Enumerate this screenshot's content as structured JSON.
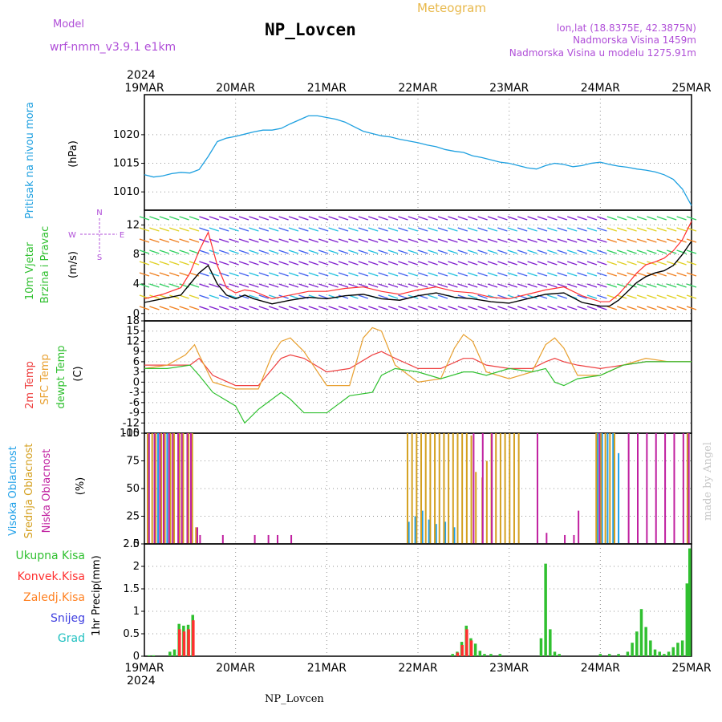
{
  "header": {
    "model_label": "Model",
    "model_name": "wrf-nmm_v3.9.1  e1km",
    "station_title": "NP_Lovcen",
    "meteogram_label": "Meteogram",
    "lonlat": "lon,lat (18.8375E, 42.3875N)",
    "altitude": "Nadmorska Visina 1459m",
    "model_altitude": "Nadmorska Visina u modelu 1275.91m",
    "bottom_station": "NP_Lovcen",
    "credit": "made by Angel",
    "colors": {
      "purple": "#b04fd8",
      "gold": "#e8b84a",
      "title": "#000000"
    }
  },
  "time_axis": {
    "year": "2024",
    "ticks": [
      "19MAR",
      "20MAR",
      "21MAR",
      "22MAR",
      "23MAR",
      "24MAR",
      "25MAR"
    ],
    "range_days": [
      0,
      6
    ]
  },
  "chart_data": [
    {
      "type": "line",
      "panel": "pressure",
      "ylabel": "Pritisak na nivou mora",
      "unit": "(hPa)",
      "ylim": [
        1006.8,
        1027
      ],
      "yticks": [
        "1010",
        "1015",
        "1020"
      ],
      "ytick_values": [
        1010,
        1015,
        1020
      ],
      "grid": true,
      "color": "#1ea0e0",
      "x": [
        0,
        0.1,
        0.2,
        0.3,
        0.4,
        0.5,
        0.6,
        0.7,
        0.8,
        0.9,
        1.0,
        1.1,
        1.2,
        1.3,
        1.4,
        1.5,
        1.6,
        1.7,
        1.8,
        1.9,
        2.0,
        2.1,
        2.2,
        2.3,
        2.4,
        2.5,
        2.6,
        2.7,
        2.8,
        2.9,
        3.0,
        3.1,
        3.2,
        3.3,
        3.4,
        3.5,
        3.6,
        3.7,
        3.8,
        3.9,
        4.0,
        4.1,
        4.2,
        4.3,
        4.4,
        4.5,
        4.6,
        4.7,
        4.8,
        4.9,
        5.0,
        5.1,
        5.2,
        5.3,
        5.4,
        5.5,
        5.6,
        5.7,
        5.8,
        5.9,
        6.0
      ],
      "values": [
        1013,
        1012.6,
        1012.8,
        1013.2,
        1013.4,
        1013.3,
        1013.9,
        1016.2,
        1018.8,
        1019.4,
        1019.7,
        1020.1,
        1020.5,
        1020.8,
        1020.8,
        1021.1,
        1021.9,
        1022.6,
        1023.3,
        1023.3,
        1023.0,
        1022.7,
        1022.2,
        1021.4,
        1020.6,
        1020.2,
        1019.8,
        1019.6,
        1019.2,
        1018.9,
        1018.6,
        1018.2,
        1017.9,
        1017.4,
        1017.1,
        1016.9,
        1016.3,
        1016.0,
        1015.6,
        1015.2,
        1015.0,
        1014.6,
        1014.2,
        1014.0,
        1014.6,
        1015.0,
        1014.8,
        1014.4,
        1014.6,
        1015.0,
        1015.2,
        1014.8,
        1014.5,
        1014.3,
        1014.0,
        1013.8,
        1013.5,
        1013.0,
        1012.2,
        1010.5,
        1007.6
      ]
    },
    {
      "type": "line",
      "panel": "wind",
      "ylabel": "10m Vjetar",
      "ylabel2": "Brzina i Pravac",
      "unit": "(m/s)",
      "compass": [
        "N",
        "E",
        "S",
        "W"
      ],
      "ylim": [
        -1,
        14
      ],
      "yticks": [
        "0",
        "4",
        "8",
        "12"
      ],
      "ytick_values": [
        0,
        4,
        8,
        12
      ],
      "grid": true,
      "series": [
        {
          "color": "#000000",
          "x": [
            0,
            0.2,
            0.4,
            0.5,
            0.6,
            0.7,
            0.8,
            0.9,
            1.0,
            1.1,
            1.2,
            1.4,
            1.6,
            1.8,
            2.0,
            2.2,
            2.4,
            2.6,
            2.8,
            3.0,
            3.2,
            3.4,
            3.6,
            3.8,
            4.0,
            4.2,
            4.4,
            4.6,
            4.8,
            5.0,
            5.1,
            5.2,
            5.3,
            5.4,
            5.5,
            5.6,
            5.7,
            5.8,
            5.9,
            6.0
          ],
          "values": [
            1.5,
            2.0,
            2.5,
            4.0,
            5.5,
            6.5,
            4.0,
            2.5,
            2.0,
            2.5,
            2.0,
            1.3,
            1.8,
            2.2,
            2.0,
            2.4,
            2.6,
            2.0,
            1.8,
            2.4,
            2.8,
            2.2,
            2.0,
            1.6,
            1.4,
            2.0,
            2.6,
            2.8,
            1.5,
            1.0,
            1.0,
            1.8,
            3.0,
            4.2,
            5.0,
            5.5,
            5.8,
            6.5,
            8.0,
            9.8
          ]
        },
        {
          "color": "#ff3030",
          "x": [
            0,
            0.2,
            0.4,
            0.5,
            0.6,
            0.7,
            0.8,
            0.9,
            1.0,
            1.1,
            1.2,
            1.4,
            1.6,
            1.8,
            2.0,
            2.2,
            2.4,
            2.6,
            2.8,
            3.0,
            3.2,
            3.4,
            3.6,
            3.8,
            4.0,
            4.2,
            4.4,
            4.6,
            4.8,
            5.0,
            5.1,
            5.2,
            5.3,
            5.4,
            5.5,
            5.6,
            5.7,
            5.8,
            5.9,
            6.0
          ],
          "values": [
            2.0,
            2.6,
            3.5,
            5.5,
            8.5,
            11.0,
            6.5,
            3.5,
            2.8,
            3.2,
            3.0,
            2.0,
            2.5,
            3.0,
            3.0,
            3.4,
            3.6,
            3.0,
            2.6,
            3.2,
            3.6,
            3.0,
            2.8,
            2.2,
            2.0,
            2.6,
            3.2,
            3.6,
            2.4,
            1.6,
            1.6,
            2.6,
            4.0,
            5.5,
            6.6,
            7.0,
            7.5,
            8.5,
            10.0,
            12.5
          ]
        }
      ],
      "barbs_note": "wind direction arrows colored by speed"
    },
    {
      "type": "line",
      "panel": "temperature",
      "ylabel": "2m Temp",
      "ylabel2": "SFC Temp",
      "ylabel3": "dewpt Temp",
      "unit": "(C)",
      "ylim": [
        -15,
        18
      ],
      "yticks": [
        "-15",
        "-12",
        "-9",
        "-6",
        "-3",
        "0",
        "3",
        "6",
        "9",
        "12",
        "15",
        "18"
      ],
      "ytick_values": [
        -15,
        -12,
        -9,
        -6,
        -3,
        0,
        3,
        6,
        9,
        12,
        15,
        18
      ],
      "grid": true,
      "series": [
        {
          "label": "2m Temp",
          "color": "#ee4040",
          "x": [
            0,
            0.25,
            0.5,
            0.6,
            0.75,
            1.0,
            1.25,
            1.5,
            1.6,
            1.75,
            2.0,
            2.25,
            2.5,
            2.6,
            2.75,
            3.0,
            3.25,
            3.5,
            3.6,
            3.75,
            4.0,
            4.25,
            4.4,
            4.5,
            4.6,
            4.75,
            5.0,
            5.25,
            5.5,
            5.75,
            6.0
          ],
          "values": [
            5,
            5,
            5,
            7,
            2,
            -1,
            -1,
            7,
            8,
            7,
            3,
            4,
            8,
            9,
            7,
            4,
            4,
            7,
            7,
            5,
            4,
            4,
            6,
            7,
            6,
            5,
            4,
            5,
            6,
            6,
            6
          ]
        },
        {
          "label": "SFC Temp",
          "color": "#e8a030",
          "x": [
            0,
            0.25,
            0.45,
            0.55,
            0.6,
            0.75,
            1.0,
            1.25,
            1.4,
            1.5,
            1.6,
            1.75,
            2.0,
            2.25,
            2.4,
            2.5,
            2.6,
            2.75,
            3.0,
            3.25,
            3.4,
            3.5,
            3.6,
            3.75,
            4.0,
            4.25,
            4.4,
            4.5,
            4.6,
            4.75,
            5.0,
            5.25,
            5.5,
            5.75,
            6.0
          ],
          "values": [
            4,
            5,
            8,
            11,
            8,
            0,
            -2,
            -2,
            8,
            12,
            13,
            9,
            -1,
            -1,
            13,
            16,
            15,
            5,
            0,
            1,
            10,
            14,
            12,
            3,
            1,
            3,
            11,
            13,
            10,
            2,
            2,
            5,
            7,
            6,
            6
          ]
        },
        {
          "label": "dewpt Temp",
          "color": "#30c030",
          "x": [
            0,
            0.25,
            0.5,
            0.6,
            0.75,
            1.0,
            1.1,
            1.25,
            1.5,
            1.6,
            1.75,
            2.0,
            2.1,
            2.25,
            2.5,
            2.6,
            2.75,
            3.0,
            3.25,
            3.5,
            3.6,
            3.75,
            4.0,
            4.25,
            4.4,
            4.5,
            4.6,
            4.75,
            5.0,
            5.25,
            5.5,
            5.75,
            6.0
          ],
          "values": [
            4,
            4,
            5,
            2,
            -3,
            -7,
            -12,
            -8,
            -3,
            -5,
            -9,
            -9,
            -7,
            -4,
            -3,
            2,
            4,
            3,
            1,
            3,
            3,
            2,
            4,
            3,
            4,
            0,
            -1,
            1,
            2,
            5,
            6,
            6,
            6
          ]
        }
      ]
    },
    {
      "type": "bar",
      "panel": "cloud",
      "ylabel": "Visoka Oblacnost",
      "ylabel2": "Srednja Oblacnost",
      "ylabel3": "Niska Oblacnost",
      "unit": "(%)",
      "ylim": [
        0,
        100
      ],
      "yticks": [
        "0",
        "25",
        "50",
        "75",
        "100"
      ],
      "ytick_values": [
        0,
        25,
        50,
        75,
        100
      ],
      "grid": true,
      "series": [
        {
          "label": "Visoka Oblacnost",
          "color": "#20a0e8",
          "x": [
            0.05,
            0.15,
            0.25,
            2.9,
            2.97,
            3.05,
            3.12,
            3.2,
            3.3,
            3.4,
            4.97,
            5.02,
            5.08,
            5.14,
            5.2
          ],
          "values": [
            100,
            100,
            100,
            20,
            25,
            30,
            22,
            18,
            20,
            15,
            100,
            100,
            100,
            100,
            82
          ]
        },
        {
          "label": "Srednja Oblacnost",
          "color": "#d4a020",
          "x": [
            0.03,
            0.08,
            0.12,
            0.18,
            0.22,
            0.28,
            0.32,
            0.38,
            0.42,
            0.48,
            0.52,
            0.56,
            2.88,
            2.93,
            2.98,
            3.03,
            3.08,
            3.13,
            3.18,
            3.23,
            3.28,
            3.33,
            3.38,
            3.43,
            3.48,
            3.53,
            3.58,
            3.63,
            3.7,
            3.75,
            3.8,
            3.85,
            3.9,
            3.95,
            4.0,
            4.05,
            4.1,
            4.95,
            5.0,
            5.05,
            5.1,
            5.15,
            5.95
          ],
          "values": [
            100,
            100,
            100,
            100,
            100,
            100,
            100,
            100,
            100,
            100,
            100,
            15,
            100,
            100,
            100,
            100,
            100,
            100,
            100,
            100,
            100,
            100,
            100,
            100,
            100,
            100,
            98,
            65,
            60,
            75,
            100,
            100,
            100,
            100,
            100,
            100,
            100,
            100,
            100,
            100,
            100,
            100,
            100
          ]
        },
        {
          "label": "Niska Oblacnost",
          "color": "#c020a0",
          "x": [
            0.04,
            0.1,
            0.16,
            0.2,
            0.26,
            0.3,
            0.36,
            0.4,
            0.46,
            0.5,
            0.57,
            0.6,
            0.85,
            1.2,
            1.35,
            1.45,
            1.6,
            3.6,
            3.7,
            3.8,
            4.3,
            4.4,
            4.6,
            4.7,
            4.75,
            4.98,
            5.3,
            5.4,
            5.5,
            5.6,
            5.7,
            5.8,
            5.9,
            5.96
          ],
          "values": [
            100,
            100,
            100,
            100,
            100,
            100,
            100,
            100,
            100,
            100,
            15,
            8,
            8,
            8,
            8,
            8,
            8,
            100,
            100,
            100,
            100,
            10,
            8,
            8,
            30,
            100,
            100,
            100,
            100,
            100,
            100,
            100,
            100,
            100
          ]
        }
      ]
    },
    {
      "type": "bar",
      "panel": "precipitation",
      "ylabel": "1hr Precip",
      "unit": "(mm)",
      "legend": [
        "Ukupna Kisa",
        "Konvek.Kisa",
        "Zaledj.Kisa",
        "Snijeg",
        "Grad"
      ],
      "legend_colors": [
        "#30c030",
        "#ff3030",
        "#ff8020",
        "#4040e0",
        "#20c0c0"
      ],
      "ylim": [
        0,
        2.5
      ],
      "yticks": [
        "0",
        "0.5",
        "1",
        "1.5",
        "2",
        "2.5"
      ],
      "ytick_values": [
        0,
        0.5,
        1,
        1.5,
        2,
        2.5
      ],
      "grid": true,
      "series": [
        {
          "label": "Ukupna Kisa",
          "color": "#30c030",
          "x": [
            0.05,
            0.1,
            0.28,
            0.33,
            0.38,
            0.43,
            0.48,
            0.53,
            3.38,
            3.43,
            3.48,
            3.53,
            3.58,
            3.63,
            3.68,
            3.73,
            3.8,
            3.9,
            4.35,
            4.4,
            4.45,
            4.5,
            4.55,
            5.0,
            5.1,
            5.2,
            5.3,
            5.35,
            5.4,
            5.45,
            5.5,
            5.55,
            5.6,
            5.65,
            5.7,
            5.75,
            5.8,
            5.85,
            5.9,
            5.95,
            5.98
          ],
          "values": [
            0.02,
            0.02,
            0.1,
            0.15,
            0.72,
            0.68,
            0.7,
            0.92,
            0.05,
            0.1,
            0.32,
            0.68,
            0.4,
            0.28,
            0.12,
            0.05,
            0.05,
            0.05,
            0.4,
            2.06,
            0.6,
            0.1,
            0.05,
            0.05,
            0.05,
            0.05,
            0.1,
            0.3,
            0.55,
            1.05,
            0.65,
            0.35,
            0.15,
            0.1,
            0.05,
            0.1,
            0.2,
            0.3,
            0.35,
            1.62,
            2.4
          ]
        },
        {
          "label": "Konvek.Kisa",
          "color": "#ff3030",
          "x": [
            0.38,
            0.43,
            0.48,
            0.53,
            3.43,
            3.48,
            3.53,
            3.58
          ],
          "values": [
            0.6,
            0.55,
            0.6,
            0.8,
            0.08,
            0.25,
            0.6,
            0.35
          ]
        }
      ]
    }
  ]
}
